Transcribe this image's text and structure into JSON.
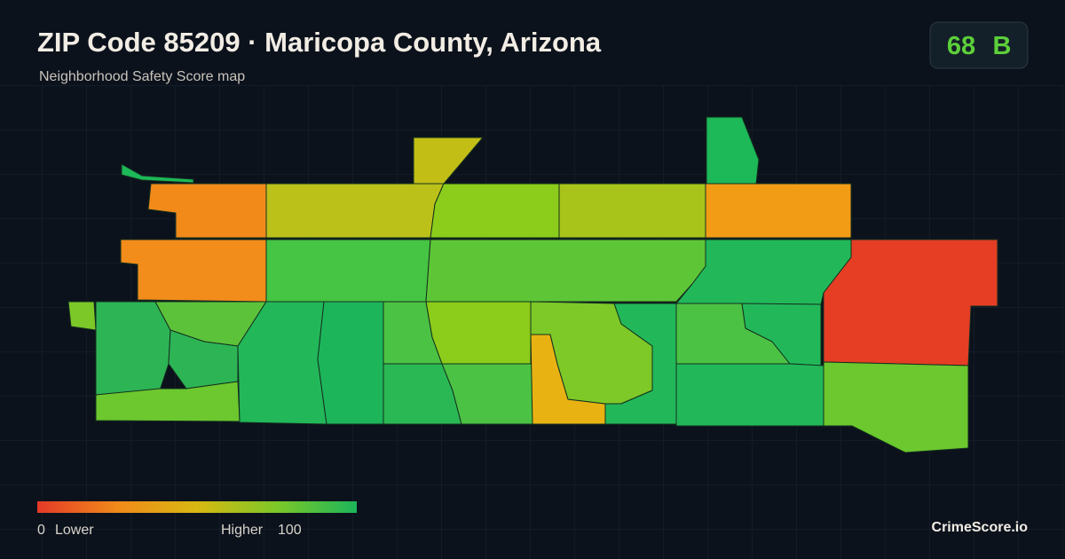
{
  "header": {
    "title": "ZIP Code 85209 · Maricopa County, Arizona",
    "subtitle": "Neighborhood Safety Score map"
  },
  "score": {
    "value": 68,
    "grade": "B"
  },
  "legend": {
    "min": 0,
    "min_label": "Lower",
    "max_label": "Higher",
    "max": 100
  },
  "brand": "CrimeScore.io"
}
